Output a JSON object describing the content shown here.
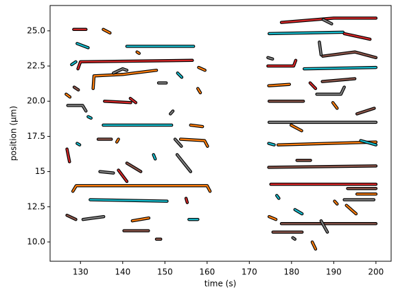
{
  "chart_data": {
    "type": "line",
    "xlabel": "time (s)",
    "ylabel": "position (μm)",
    "xlim": [
      122.8,
      203.6
    ],
    "ylim": [
      8.63,
      26.8
    ],
    "xticks": [
      130,
      140,
      150,
      160,
      170,
      180,
      190,
      200
    ],
    "yticks": [
      {
        "value": 10,
        "label": "10.0"
      },
      12.5,
      15,
      17.5,
      {
        "value": 20,
        "label": "20.0"
      },
      22.5,
      {
        "value": 25,
        "label": "25.0"
      }
    ],
    "series": [
      {
        "color": "#d62728",
        "x": [
          128.4,
          131.3
        ],
        "values": [
          25.1,
          25.1
        ]
      },
      {
        "color": "#ff7f0e",
        "x": [
          135.4,
          137
        ],
        "values": [
          25.1,
          24.85
        ]
      },
      {
        "color": "#17becf",
        "x": [
          129.2,
          131.8
        ],
        "values": [
          24.1,
          23.8
        ]
      },
      {
        "color": "#17becf",
        "x": [
          141,
          156.8
        ],
        "values": [
          23.9,
          23.9
        ]
      },
      {
        "color": "#d62728",
        "x": [
          129.4,
          130,
          156.5
        ],
        "values": [
          22.3,
          22.8,
          22.9
        ]
      },
      {
        "color": "#17becf",
        "x": [
          127.9,
          128.9
        ],
        "values": [
          22.6,
          22.8
        ]
      },
      {
        "color": "#ff7f0e",
        "x": [
          133.0,
          133.2,
          140,
          148
        ],
        "values": [
          20.9,
          21.8,
          21.9,
          22.2
        ]
      },
      {
        "color": "#7f7f7f",
        "x": [
          137.8,
          140,
          141
        ],
        "values": [
          22.0,
          22.3,
          22.2
        ]
      },
      {
        "color": "#ff7f0e",
        "x": [
          143.4,
          143.9
        ],
        "values": [
          23.5,
          23.4
        ]
      },
      {
        "color": "#17becf",
        "x": [
          153,
          154
        ],
        "values": [
          22.0,
          21.7
        ]
      },
      {
        "color": "#ff7f0e",
        "x": [
          158,
          159.5
        ],
        "values": [
          22.4,
          22.2
        ]
      },
      {
        "color": "#7f7f7f",
        "x": [
          148.5,
          150.3
        ],
        "values": [
          21.3,
          21.3
        ]
      },
      {
        "color": "#ff7f0e",
        "x": [
          126.6,
          127.5
        ],
        "values": [
          20.5,
          20.3
        ]
      },
      {
        "color": "#8c564b",
        "x": [
          128.5,
          129.5
        ],
        "values": [
          21.0,
          20.8
        ]
      },
      {
        "color": "#7f7f7f",
        "x": [
          127,
          130.5,
          131.3
        ],
        "values": [
          19.7,
          19.7,
          19.3
        ]
      },
      {
        "color": "#17becf",
        "x": [
          131.8,
          132.5
        ],
        "values": [
          18.9,
          18.8
        ]
      },
      {
        "color": "#d62728",
        "x": [
          135.7,
          141.9
        ],
        "values": [
          20.0,
          19.9
        ]
      },
      {
        "color": "#d62728",
        "x": [
          141.8,
          143.1
        ],
        "values": [
          20.2,
          19.9
        ]
      },
      {
        "color": "#17becf",
        "x": [
          135.4,
          151.6
        ],
        "values": [
          18.3,
          18.3
        ]
      },
      {
        "color": "#ff7f0e",
        "x": [
          156.1,
          158.9
        ],
        "values": [
          18.3,
          18.2
        ]
      },
      {
        "color": "#7f7f7f",
        "x": [
          151.3,
          151.9
        ],
        "values": [
          19.1,
          19.3
        ]
      },
      {
        "color": "#ff7f0e",
        "x": [
          157.8,
          158.4
        ],
        "values": [
          20.9,
          20.6
        ]
      },
      {
        "color": "#8c564b",
        "x": [
          134.2,
          137.3
        ],
        "values": [
          17.3,
          17.3
        ]
      },
      {
        "color": "#ff7f0e",
        "x": [
          138.6,
          139
        ],
        "values": [
          17.1,
          17.3
        ]
      },
      {
        "color": "#ff7f0e",
        "x": [
          153.7,
          159.4,
          160.1
        ],
        "values": [
          17.3,
          17.2,
          16.8
        ]
      },
      {
        "color": "#7f7f7f",
        "x": [
          152.4,
          153.9
        ],
        "values": [
          17.3,
          16.8
        ]
      },
      {
        "color": "#d62728",
        "x": [
          126.8,
          127.4
        ],
        "values": [
          16.6,
          15.7
        ]
      },
      {
        "color": "#17becf",
        "x": [
          129.2,
          129.8
        ],
        "values": [
          17.0,
          16.9
        ]
      },
      {
        "color": "#7f7f7f",
        "x": [
          152.9,
          156.1
        ],
        "values": [
          16.2,
          15.0
        ]
      },
      {
        "color": "#8c564b",
        "x": [
          141,
          144.3
        ],
        "values": [
          15.6,
          15.0
        ]
      },
      {
        "color": "#7f7f7f",
        "x": [
          134.6,
          137.8
        ],
        "values": [
          15.0,
          14.9
        ]
      },
      {
        "color": "#d62728",
        "x": [
          139,
          141
        ],
        "values": [
          15.1,
          14.3
        ]
      },
      {
        "color": "#17becf",
        "x": [
          147.3,
          147.7
        ],
        "values": [
          16.2,
          15.9
        ]
      },
      {
        "color": "#ff7f0e",
        "x": [
          128.2,
          129,
          160,
          160.7
        ],
        "values": [
          13.6,
          14.0,
          14.0,
          13.6
        ]
      },
      {
        "color": "#17becf",
        "x": [
          132.3,
          150.5
        ],
        "values": [
          13.0,
          12.9
        ]
      },
      {
        "color": "#d62728",
        "x": [
          155,
          155.3
        ],
        "values": [
          13.1,
          12.8
        ]
      },
      {
        "color": "#8c564b",
        "x": [
          126.8,
          128.9
        ],
        "values": [
          11.9,
          11.6
        ]
      },
      {
        "color": "#7f7f7f",
        "x": [
          130.6,
          135.5
        ],
        "values": [
          11.6,
          11.8
        ]
      },
      {
        "color": "#ff7f0e",
        "x": [
          142.3,
          146.2
        ],
        "values": [
          11.5,
          11.7
        ]
      },
      {
        "color": "#17becf",
        "x": [
          155.7,
          157.8
        ],
        "values": [
          11.6,
          11.6
        ]
      },
      {
        "color": "#8c564b",
        "x": [
          140.3,
          146.1
        ],
        "values": [
          10.8,
          10.8
        ]
      },
      {
        "color": "#8c564b",
        "x": [
          148,
          149
        ],
        "values": [
          10.2,
          10.2
        ]
      },
      {
        "color": "#d62728",
        "x": [
          177.6,
          190,
          200
        ],
        "values": [
          25.6,
          25.9,
          25.9
        ]
      },
      {
        "color": "#17becf",
        "x": [
          174.7,
          192.2
        ],
        "values": [
          24.8,
          24.9
        ]
      },
      {
        "color": "#d62728",
        "x": [
          192.5,
          198.6
        ],
        "values": [
          24.8,
          24.4
        ]
      },
      {
        "color": "#7f7f7f",
        "x": [
          187.5,
          189.5
        ],
        "values": [
          25.8,
          25.5
        ]
      },
      {
        "color": "#8c564b",
        "x": [
          187.4,
          195,
          200
        ],
        "values": [
          23.2,
          23.5,
          23.1
        ]
      },
      {
        "color": "#7f7f7f",
        "x": [
          186.6,
          187
        ],
        "values": [
          24.2,
          23.3
        ]
      },
      {
        "color": "#d62728",
        "x": [
          174.4,
          180.5,
          181
        ],
        "values": [
          22.5,
          22.5,
          22.9
        ]
      },
      {
        "color": "#17becf",
        "x": [
          183,
          200
        ],
        "values": [
          22.3,
          22.4
        ]
      },
      {
        "color": "#7f7f7f",
        "x": [
          174.4,
          175.5
        ],
        "values": [
          23.1,
          23.0
        ]
      },
      {
        "color": "#ff7f0e",
        "x": [
          174.6,
          179.5
        ],
        "values": [
          21.1,
          21.2
        ]
      },
      {
        "color": "#d62728",
        "x": [
          184.4,
          185.7
        ],
        "values": [
          21.3,
          20.9
        ]
      },
      {
        "color": "#7f7f7f",
        "x": [
          186.0,
          191.7,
          192.5
        ],
        "values": [
          20.5,
          20.5,
          21.0
        ]
      },
      {
        "color": "#8c564b",
        "x": [
          187.3,
          195
        ],
        "values": [
          21.4,
          21.6
        ]
      },
      {
        "color": "#8c564b",
        "x": [
          174.7,
          182.8
        ],
        "values": [
          20.0,
          20.0
        ]
      },
      {
        "color": "#ff7f0e",
        "x": [
          189.8,
          190.8
        ],
        "values": [
          19.9,
          19.5
        ]
      },
      {
        "color": "#8c564b",
        "x": [
          195.5,
          199.6
        ],
        "values": [
          19.1,
          19.5
        ]
      },
      {
        "color": "#7f7f7f",
        "x": [
          174.7,
          200
        ],
        "values": [
          18.5,
          18.5
        ]
      },
      {
        "color": "#ff7f0e",
        "x": [
          176.8,
          200
        ],
        "values": [
          16.9,
          17.1
        ]
      },
      {
        "color": "#17becf",
        "x": [
          196.4,
          200
        ],
        "values": [
          17.2,
          16.9
        ]
      },
      {
        "color": "#17becf",
        "x": [
          174.6,
          175.9
        ],
        "values": [
          17.0,
          16.9
        ]
      },
      {
        "color": "#ff7f0e",
        "x": [
          179.9,
          182.4
        ],
        "values": [
          18.3,
          17.9
        ]
      },
      {
        "color": "#8c564b",
        "x": [
          174.6,
          200
        ],
        "values": [
          15.3,
          15.4
        ]
      },
      {
        "color": "#8c564b",
        "x": [
          181.3,
          184.5
        ],
        "values": [
          15.8,
          15.8
        ]
      },
      {
        "color": "#d62728",
        "x": [
          175.1,
          200
        ],
        "values": [
          14.1,
          14.1
        ]
      },
      {
        "color": "#8c564b",
        "x": [
          193.3,
          200
        ],
        "values": [
          13.8,
          13.8
        ]
      },
      {
        "color": "#ff7f0e",
        "x": [
          195.5,
          200
        ],
        "values": [
          13.4,
          13.4
        ]
      },
      {
        "color": "#7f7f7f",
        "x": [
          192.5,
          199.5
        ],
        "values": [
          13.0,
          13.0
        ]
      },
      {
        "color": "#17becf",
        "x": [
          176.5,
          177
        ],
        "values": [
          13.3,
          13.1
        ]
      },
      {
        "color": "#8c564b",
        "x": [
          177.6,
          200
        ],
        "values": [
          11.3,
          11.3
        ]
      },
      {
        "color": "#ff7f0e",
        "x": [
          174.7,
          176.3
        ],
        "values": [
          11.8,
          11.6
        ]
      },
      {
        "color": "#17becf",
        "x": [
          180.8,
          182.5
        ],
        "values": [
          12.3,
          12.0
        ]
      },
      {
        "color": "#7f7f7f",
        "x": [
          187,
          188.5
        ],
        "values": [
          11.5,
          10.7
        ]
      },
      {
        "color": "#8c564b",
        "x": [
          175.6,
          182.5
        ],
        "values": [
          10.7,
          10.7
        ]
      },
      {
        "color": "#ff7f0e",
        "x": [
          184.9,
          185.7
        ],
        "values": [
          10.0,
          9.5
        ]
      },
      {
        "color": "#ff7f0e",
        "x": [
          193,
          195.3
        ],
        "values": [
          12.6,
          12.0
        ]
      },
      {
        "color": "#ff7f0e",
        "x": [
          190.2,
          190.8
        ],
        "values": [
          12.9,
          12.7
        ]
      },
      {
        "color": "#7f7f7f",
        "x": [
          180.3,
          180.8
        ],
        "values": [
          10.3,
          10.2
        ]
      }
    ]
  }
}
